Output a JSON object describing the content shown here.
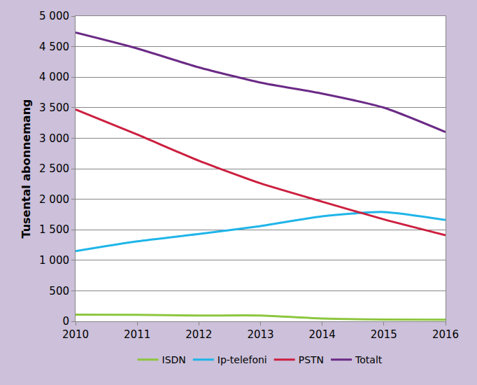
{
  "chart_data": {
    "type": "line",
    "y_label": "Tusental abonnemang",
    "x": [
      2010,
      2011,
      2012,
      2013,
      2014,
      2015,
      2016
    ],
    "series": [
      {
        "name": "ISDN",
        "color": "#8dc63f",
        "values": [
          110,
          105,
          95,
          95,
          45,
          30,
          25
        ]
      },
      {
        "name": "Ip-telefoni",
        "color": "#1fb5e9",
        "values": [
          1150,
          1310,
          1430,
          1560,
          1720,
          1790,
          1660
        ]
      },
      {
        "name": "PSTN",
        "color": "#cc1f3f",
        "values": [
          3470,
          3060,
          2630,
          2260,
          1960,
          1670,
          1410
        ]
      },
      {
        "name": "Totalt",
        "color": "#6b2a86",
        "values": [
          4730,
          4470,
          4160,
          3910,
          3730,
          3500,
          3100
        ]
      }
    ],
    "xlim": [
      2010,
      2016
    ],
    "xticks": [
      2010,
      2011,
      2012,
      2013,
      2014,
      2015,
      2016
    ],
    "ylim": [
      0,
      5000
    ],
    "yticks": [
      0,
      500,
      {
        "value": 1000,
        "label": "1 000"
      },
      {
        "value": 1500,
        "label": "1 500"
      },
      {
        "value": 2000,
        "label": "2 000"
      },
      {
        "value": 2500,
        "label": "2 500"
      },
      {
        "value": 3000,
        "label": "3 000"
      },
      {
        "value": 3500,
        "label": "3 500"
      },
      {
        "value": 4000,
        "label": "4 000"
      },
      {
        "value": 4500,
        "label": "4 500"
      },
      {
        "value": 5000,
        "label": "5 000"
      }
    ],
    "grid": true,
    "legend": "bottom"
  }
}
